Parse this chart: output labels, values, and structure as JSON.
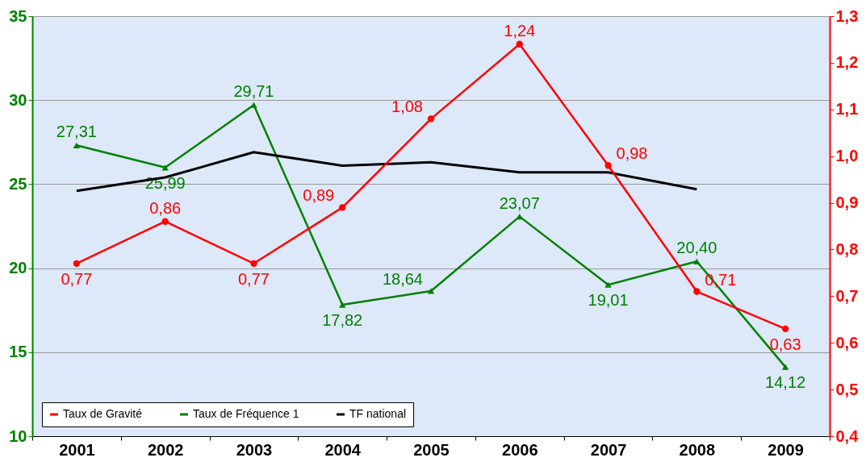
{
  "chart_data": {
    "type": "line",
    "categories": [
      "2001",
      "2002",
      "2003",
      "2004",
      "2005",
      "2006",
      "2007",
      "2008",
      "2009"
    ],
    "series": [
      {
        "name": "Taux de Gravité",
        "color": "#ff0000",
        "axis": "y2",
        "marker": "circle",
        "values": [
          0.77,
          0.86,
          0.77,
          0.89,
          1.08,
          1.24,
          0.98,
          0.71,
          0.63
        ],
        "value_labels": [
          "0,77",
          "0,86",
          "0,77",
          "0,89",
          "1,08",
          "1,24",
          "0,98",
          "0,71",
          "0,63"
        ]
      },
      {
        "name": "Taux de Fréquence 1",
        "color": "#008000",
        "marker": "triangle",
        "values": [
          27.31,
          25.99,
          29.71,
          17.82,
          18.64,
          23.07,
          19.01,
          20.4,
          14.12
        ],
        "value_labels": [
          "27,31",
          "25,99",
          "29,71",
          "17,82",
          "18,64",
          "23,07",
          "19,01",
          "20,40",
          "14,12"
        ]
      },
      {
        "name": "TF national",
        "color": "#000000",
        "marker": "none",
        "values": [
          24.6,
          25.4,
          26.9,
          26.1,
          26.3,
          25.7,
          25.7,
          24.7,
          null
        ]
      }
    ],
    "ylim": [
      10,
      35
    ],
    "yticks": [
      10,
      15,
      20,
      25,
      30,
      35
    ],
    "y2lim": [
      0.4,
      1.3
    ],
    "y2ticks": [
      {
        "value": 0.4,
        "label": "0,4"
      },
      {
        "value": 0.5,
        "label": "0,5"
      },
      {
        "value": 0.6,
        "label": "0,6"
      },
      {
        "value": 0.7,
        "label": "0,7"
      },
      {
        "value": 0.8,
        "label": "0,8"
      },
      {
        "value": 0.9,
        "label": "0,9"
      },
      {
        "value": 1.0,
        "label": "1,0"
      },
      {
        "value": 1.1,
        "label": "1,1"
      },
      {
        "value": 1.2,
        "label": "1,2"
      },
      {
        "value": 1.3,
        "label": "1,3"
      }
    ],
    "grid": "y",
    "legend": "bottom"
  }
}
